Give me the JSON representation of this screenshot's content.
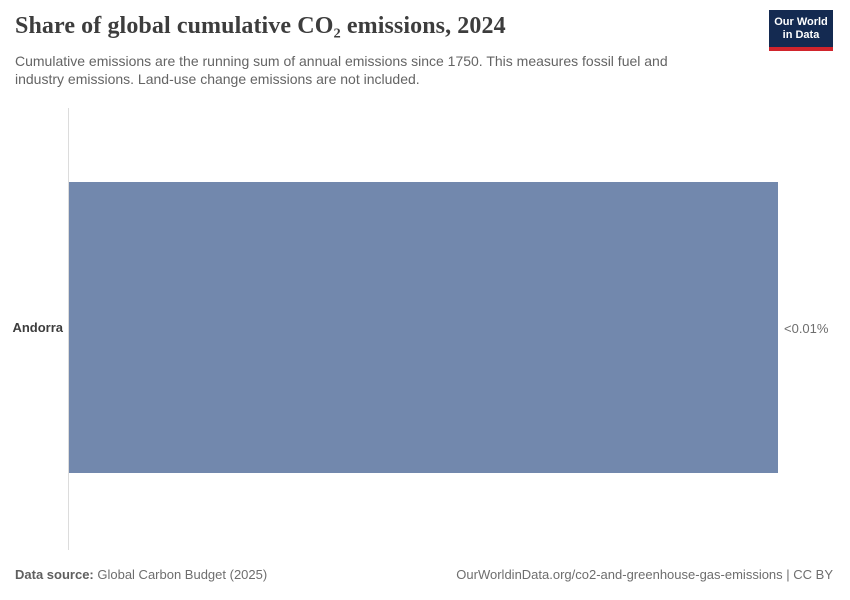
{
  "header": {
    "title": "Share of global cumulative CO₂ emissions, 2024",
    "subtitle": "Cumulative emissions are the running sum of annual emissions since 1750. This measures fossil fuel and industry emissions. Land-use change emissions are not included."
  },
  "logo": {
    "line1": "Our World",
    "line2": "in Data",
    "bg_color": "#142a51",
    "accent_color": "#d1242c"
  },
  "chart_data": {
    "type": "bar",
    "orientation": "horizontal",
    "title": "Share of global cumulative CO₂ emissions, 2024",
    "categories": [
      "Andorra"
    ],
    "values": [
      0.01
    ],
    "value_display": [
      "<0.01%"
    ],
    "xlabel": "",
    "ylabel": "",
    "bar_color": "#7288ad",
    "axis_line_color": "#dcdcdc",
    "grid": false,
    "legend": "none"
  },
  "footer": {
    "data_source_label": "Data source:",
    "data_source_value": " Global Carbon Budget (2025)",
    "url_text": "OurWorldinData.org/co2-and-greenhouse-gas-emissions | CC BY"
  }
}
